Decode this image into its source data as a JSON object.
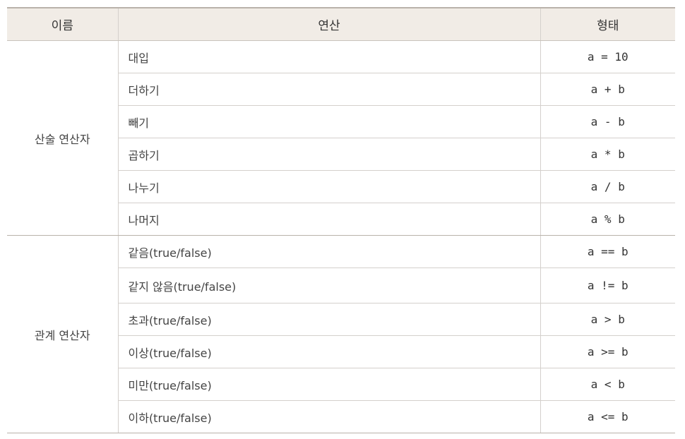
{
  "header": {
    "name": "이름",
    "operation": "연산",
    "form": "형태"
  },
  "groups": [
    {
      "name": "산술 연산자",
      "rows": [
        {
          "operation": "대입",
          "form": "a = 10"
        },
        {
          "operation": "더하기",
          "form": "a + b"
        },
        {
          "operation": "빼기",
          "form": "a - b"
        },
        {
          "operation": "곱하기",
          "form": "a * b"
        },
        {
          "operation": "나누기",
          "form": "a / b"
        },
        {
          "operation": "나머지",
          "form": "a % b"
        }
      ]
    },
    {
      "name": "관계 연산자",
      "rows": [
        {
          "operation": "같음(true/false)",
          "form": "a == b"
        },
        {
          "operation": "같지 않음(true/false)",
          "form": "a != b"
        },
        {
          "operation": "초과(true/false)",
          "form": "a > b"
        },
        {
          "operation": "이상(true/false)",
          "form": "a >= b"
        },
        {
          "operation": "미만(true/false)",
          "form": "a < b"
        },
        {
          "operation": "이하(true/false)",
          "form": "a <= b"
        }
      ]
    }
  ]
}
